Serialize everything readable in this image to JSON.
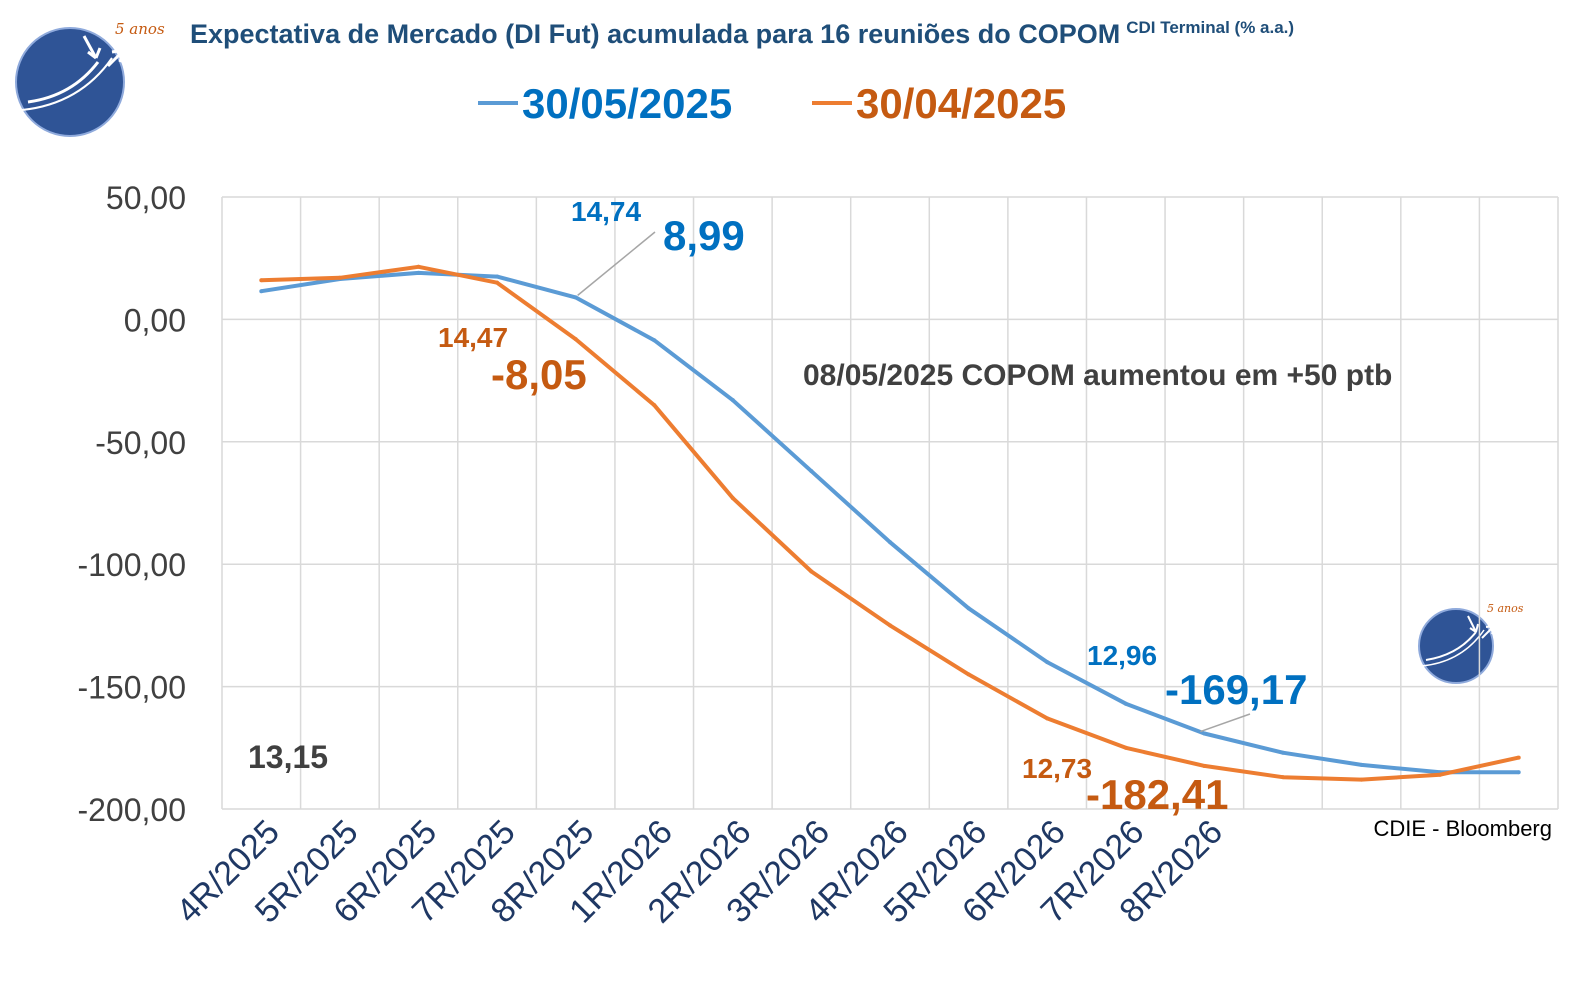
{
  "title": "Expectativa de Mercado (DI Fut) acumulada para 16 reuniões do COPOM",
  "title_suffix": "CDI Terminal (% a.a.)",
  "logo_tag": "5 anos",
  "colors": {
    "blue": "#5b9bd5",
    "orange": "#ed7d31",
    "blue_text": "#0070c0",
    "orange_text": "#c55a11",
    "title": "#1f4e79",
    "logo": "#2f5496"
  },
  "chart_data": {
    "type": "line",
    "categories": [
      "4R/2025",
      "5R/2025",
      "6R/2025",
      "7R/2025",
      "8R/2025",
      "1R/2026",
      "2R/2026",
      "3R/2026",
      "4R/2026",
      "5R/2026",
      "6R/2026",
      "7R/2026",
      "8R/2026",
      "",
      "",
      "",
      ""
    ],
    "series": [
      {
        "name": "30/05/2025",
        "color": "#5b9bd5",
        "values": [
          11.5,
          16.5,
          19,
          17.5,
          8.99,
          -8.5,
          -33,
          -62,
          -91,
          -118,
          -140,
          -157,
          -169.17,
          -177,
          -182,
          -185,
          -185
        ]
      },
      {
        "name": "30/04/2025",
        "color": "#ed7d31",
        "values": [
          16,
          17,
          21.5,
          15,
          -8.05,
          -35,
          -73,
          -103,
          -125,
          -145,
          -163,
          -175,
          -182.41,
          -187,
          -188,
          -186,
          -179
        ]
      }
    ],
    "ylim": [
      -200,
      50
    ],
    "yticks": [
      -200,
      -150,
      -100,
      -50,
      0,
      50
    ],
    "ytick_labels": [
      "-200,00",
      "-150,00",
      "-100,00",
      "-50,00",
      "0,00",
      "50,00"
    ],
    "grid": true,
    "legend_position": "top",
    "annotations": {
      "blue_rate_1": "14,74",
      "blue_value_1": "8,99",
      "orange_rate_1": "14,47",
      "orange_value_1": "-8,05",
      "blue_rate_2": "12,96",
      "blue_value_2": "-169,17",
      "orange_rate_2": "12,73",
      "orange_value_2": "-182,41",
      "current_rate": "13,15",
      "note": "08/05/2025 COPOM aumentou em +50 ptb",
      "source": "CDIE - Bloomberg"
    }
  }
}
